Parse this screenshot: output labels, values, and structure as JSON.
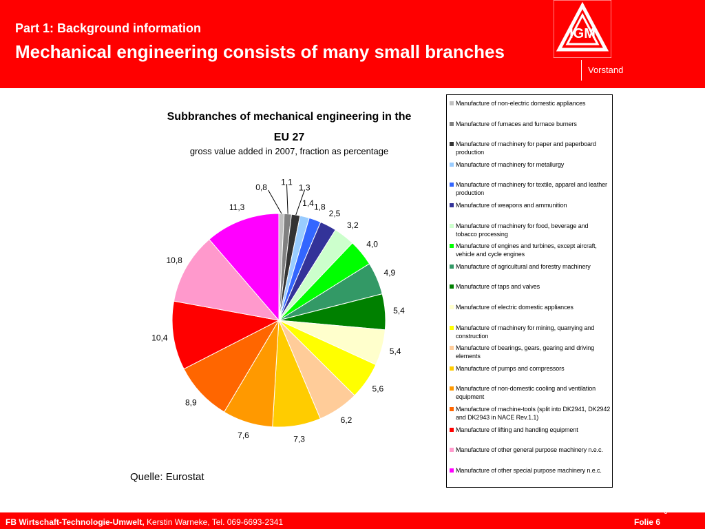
{
  "header": {
    "part_title": "Part 1: Background information",
    "main_title": "Mechanical engineering consists of many small branches",
    "logo_text": "IGM",
    "vorstand": "Vorstand"
  },
  "chart_data": {
    "type": "pie",
    "title": "Subbranches of mechanical engineering in the EU 27",
    "subtitle": "gross value added in 2007, fraction as percentage",
    "slices": [
      {
        "label": "Manufacture of non-electric domestic appliances",
        "value": 0.8,
        "value_label": "0,8",
        "color": "#c0c0c0"
      },
      {
        "label": "Manufacture of furnaces and furnace burners",
        "value": 1.1,
        "value_label": "1,1",
        "color": "#808080"
      },
      {
        "label": "Manufacture of machinery for paper and paperboard production",
        "value": 1.3,
        "value_label": "1,3",
        "color": "#333333"
      },
      {
        "label": "Manufacture of machinery for metallurgy",
        "value": 1.4,
        "value_label": "1,4",
        "color": "#99ccff"
      },
      {
        "label": "Manufacture of machinery for textile, apparel and leather production",
        "value": 1.8,
        "value_label": "1,8",
        "color": "#3366ff"
      },
      {
        "label": "Manufacture of weapons and ammunition",
        "value": 2.5,
        "value_label": "2,5",
        "color": "#333399"
      },
      {
        "label": "Manufacture of machinery for food, beverage and tobacco processing",
        "value": 3.2,
        "value_label": "3,2",
        "color": "#ccffcc"
      },
      {
        "label": "Manufacture of engines and turbines, except aircraft, vehicle and cycle engines",
        "value": 4.0,
        "value_label": "4,0",
        "color": "#00ff00"
      },
      {
        "label": "Manufacture of agricultural and forestry machinery",
        "value": 4.9,
        "value_label": "4,9",
        "color": "#339966"
      },
      {
        "label": "Manufacture of taps and valves",
        "value": 5.4,
        "value_label": "5,4",
        "color": "#008000"
      },
      {
        "label": "Manufacture of electric domestic appliances",
        "value": 5.4,
        "value_label": "5,4",
        "color": "#ffffcc"
      },
      {
        "label": "Manufacture of machinery for mining, quarrying and construction",
        "value": 5.6,
        "value_label": "5,6",
        "color": "#ffff00"
      },
      {
        "label": "Manufacture of bearings, gears, gearing and driving elements",
        "value": 6.2,
        "value_label": "6,2",
        "color": "#ffcc99"
      },
      {
        "label": "Manufacture of pumps and compressors",
        "value": 7.3,
        "value_label": "7,3",
        "color": "#ffcc00"
      },
      {
        "label": "Manufacture of non-domestic cooling and ventilation equipment",
        "value": 7.6,
        "value_label": "7,6",
        "color": "#ff9900"
      },
      {
        "label": "Manufacture of machine-tools (split into DK2941, DK2942 and DK2943 in NACE Rev.1.1)",
        "value": 8.9,
        "value_label": "8,9",
        "color": "#ff6600"
      },
      {
        "label": "Manufacture of lifting and handling equipment",
        "value": 10.4,
        "value_label": "10,4",
        "color": "#ff0000"
      },
      {
        "label": "Manufacture of other general purpose machinery n.e.c.",
        "value": 10.8,
        "value_label": "10,8",
        "color": "#ff99cc"
      },
      {
        "label": "Manufacture of other special purpose machinery n.e.c.",
        "value": 11.3,
        "value_label": "11,3",
        "color": "#ff00ff"
      }
    ],
    "legend_position": "right"
  },
  "source": "Quelle: Eurostat",
  "footer": {
    "dept": "FB Wirtschaft-Technologie-Umwelt,",
    "contact": " Kerstin Warneke, Tel. 069-6693-2341",
    "folio": "Folie 6",
    "page_number": "6"
  },
  "colors": {
    "brand_red": "#ff0000"
  }
}
